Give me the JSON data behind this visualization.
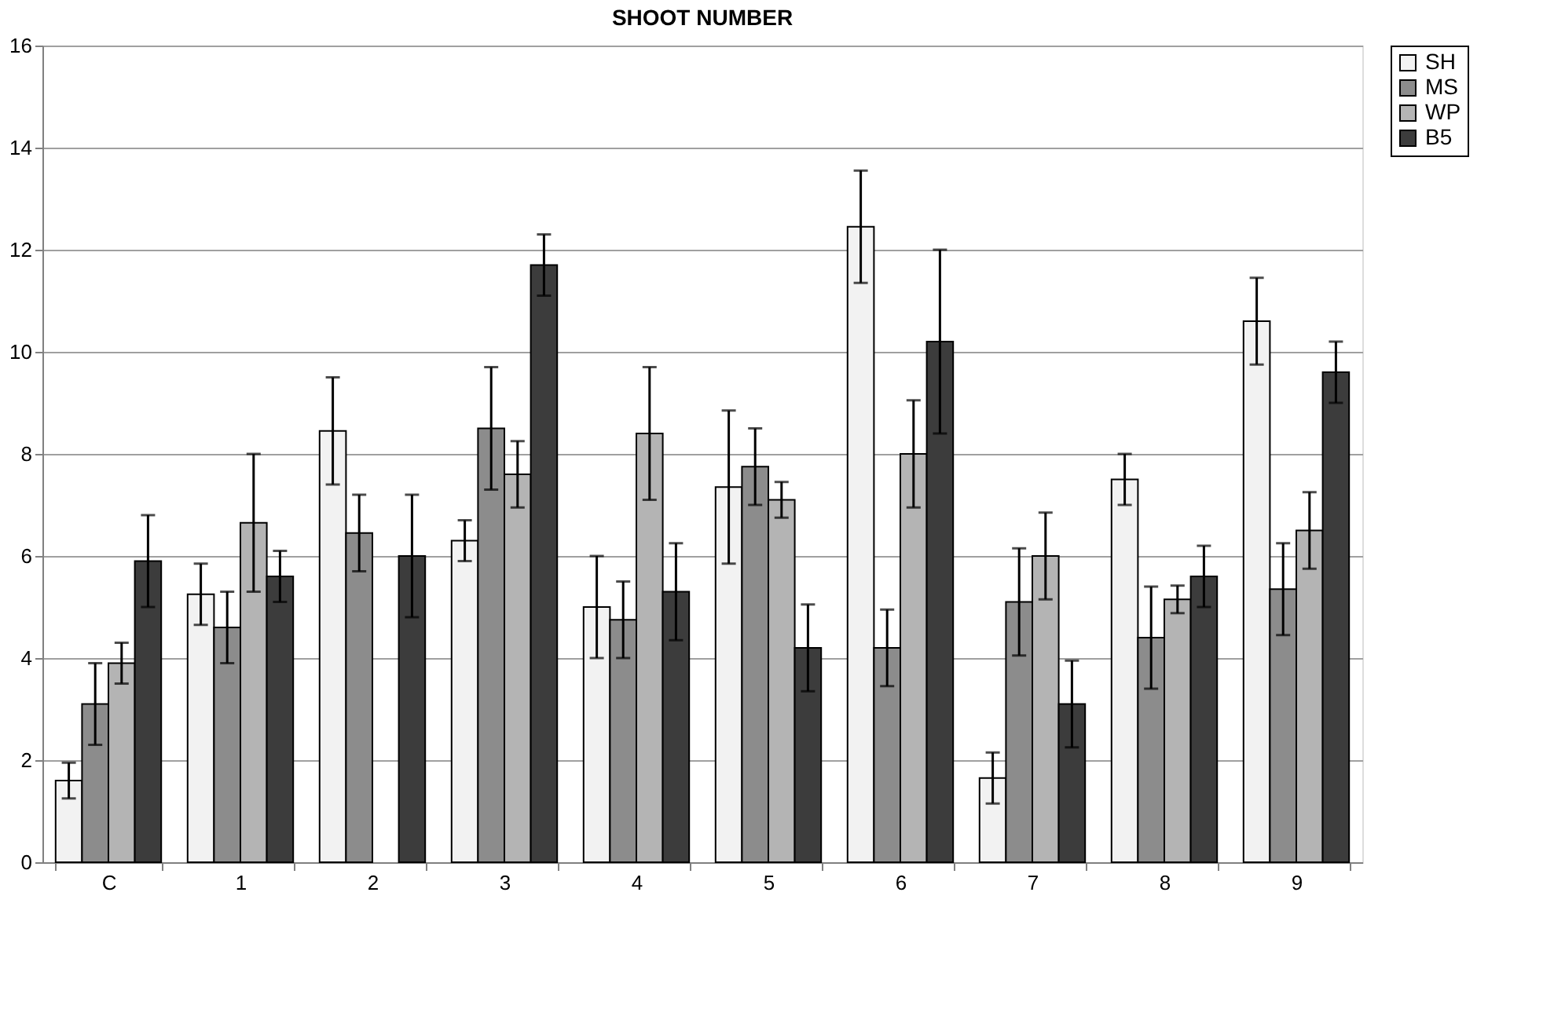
{
  "chart_data": {
    "type": "bar",
    "title": "SHOOT NUMBER",
    "categories": [
      "C",
      "1",
      "2",
      "3",
      "4",
      "5",
      "6",
      "7",
      "8",
      "9"
    ],
    "series": [
      {
        "name": "SH",
        "color": "#f2f2f2",
        "values": [
          1.6,
          5.25,
          8.45,
          6.3,
          5.0,
          7.35,
          12.45,
          1.65,
          7.5,
          10.6
        ],
        "errors": [
          0.35,
          0.6,
          1.05,
          0.4,
          1.0,
          1.5,
          1.1,
          0.5,
          0.5,
          0.85
        ]
      },
      {
        "name": "MS",
        "color": "#8c8c8c",
        "values": [
          3.1,
          4.6,
          6.45,
          8.5,
          4.75,
          7.75,
          4.2,
          5.1,
          4.4,
          5.35
        ],
        "errors": [
          0.8,
          0.7,
          0.75,
          1.2,
          0.75,
          0.75,
          0.75,
          1.05,
          1.0,
          0.9
        ]
      },
      {
        "name": "WP",
        "color": "#b4b4b4",
        "values": [
          3.9,
          6.65,
          null,
          7.6,
          8.4,
          7.1,
          8.0,
          6.0,
          5.15,
          6.5
        ],
        "errors": [
          0.4,
          1.35,
          null,
          0.65,
          1.3,
          0.35,
          1.05,
          0.85,
          0.27,
          0.75
        ]
      },
      {
        "name": "B5",
        "color": "#3c3c3c",
        "values": [
          5.9,
          5.6,
          6.0,
          11.7,
          5.3,
          4.2,
          10.2,
          3.1,
          5.6,
          9.6
        ],
        "errors": [
          0.9,
          0.5,
          1.2,
          0.6,
          0.95,
          0.85,
          1.8,
          0.85,
          0.6,
          0.6
        ]
      }
    ],
    "ylim": [
      0,
      16
    ],
    "yticks": [
      0,
      2,
      4,
      6,
      8,
      10,
      12,
      14,
      16
    ],
    "grid": "y",
    "legend": "right"
  }
}
